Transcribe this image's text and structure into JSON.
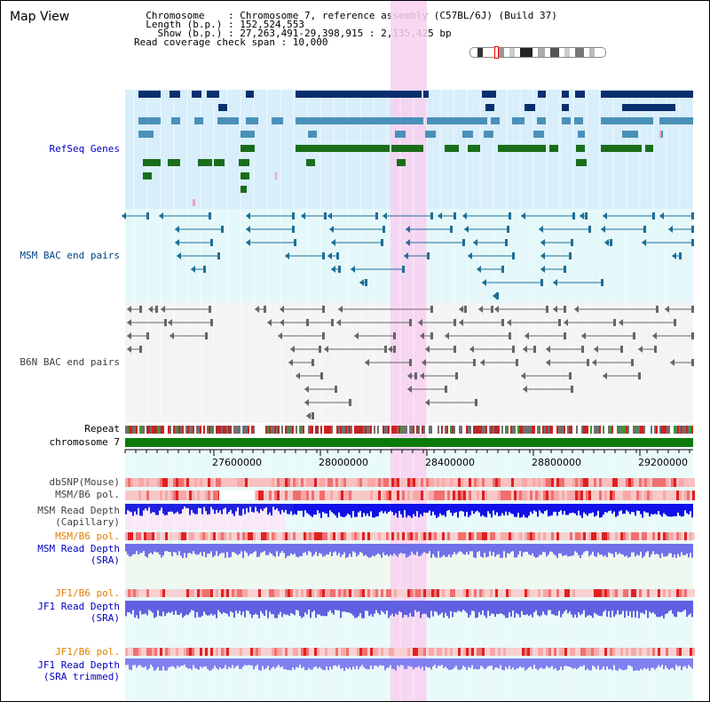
{
  "header": {
    "title": "Map View",
    "info_lines": [
      "  Chromosome    : Chromosome 7, reference assembly (C57BL/6J) (Build 37)",
      "  Length (b.p.) : 152,524,553",
      "    Show (b.p.) : 27,263,491-29,398,915 : 2,135,425 bp",
      "Read coverage check span : 10,000"
    ]
  },
  "tracks": {
    "refseq": "RefSeq Genes",
    "msm_bac": "MSM BAC end pairs",
    "b6n_bac": "B6N BAC end pairs",
    "repeat": "Repeat",
    "chromosome": "chromosome 7",
    "dbsnp": "dbSNP(Mouse)",
    "msm_b6_pol": "MSM/B6 pol.",
    "msm_depth_cap_1": "MSM Read Depth",
    "msm_depth_cap_2": "(Capillary)",
    "msm_b6_pol_sra": "MSM/B6 pol.",
    "msm_depth_sra_1": "MSM Read Depth",
    "msm_depth_sra_2": "(SRA)",
    "jf1_b6_pol": "JF1/B6 pol.",
    "jf1_depth_sra_1": "JF1 Read Depth",
    "jf1_depth_sra_2": "(SRA)",
    "jf1_b6_pol_trim": "JF1/B6 pol.",
    "jf1_depth_trim_1": "JF1 Read Depth",
    "jf1_depth_trim_2": "(SRA trimmed)"
  },
  "axis": {
    "ticks": [
      "27600000",
      "28000000",
      "28400000",
      "28800000",
      "29200000"
    ]
  },
  "colors": {
    "refseq_label": "#0000c0",
    "bac_label": "#004080",
    "orange_label": "#e08000",
    "blue_label": "#0000c0",
    "gray_label": "#404040",
    "highlight": "#f8d0f0"
  }
}
